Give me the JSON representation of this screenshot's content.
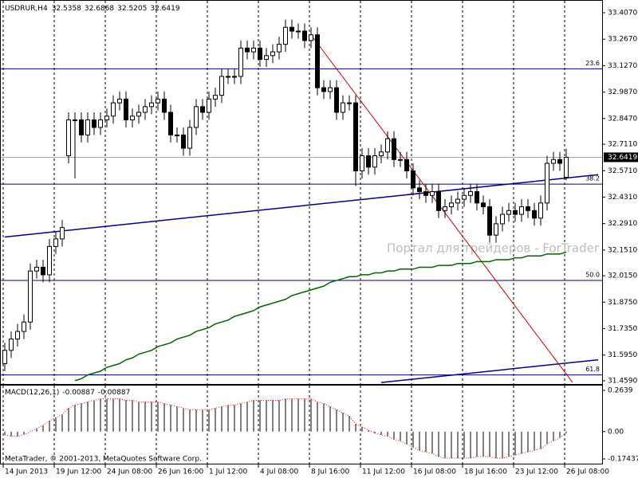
{
  "chart_data": [
    {
      "type": "candlestick",
      "symbol": "USDRUR,H4",
      "open": [
        31.55,
        31.62,
        31.68,
        31.72,
        31.77,
        32.04,
        32.06,
        32.02,
        32.17,
        32.21,
        32.65,
        32.84,
        32.84,
        32.76,
        32.84,
        32.8,
        32.84,
        32.86,
        32.93,
        32.95,
        32.84,
        32.86,
        32.88,
        32.91,
        32.93,
        32.95,
        32.88,
        32.76,
        32.76,
        32.69,
        32.8,
        32.91,
        32.88,
        32.95,
        32.97,
        33.07,
        33.07,
        33.07,
        33.22,
        33.2,
        33.22,
        33.16,
        33.18,
        33.2,
        33.24,
        33.33,
        33.31,
        33.31,
        33.26,
        33.29,
        33.01,
        32.99,
        33.01,
        32.88,
        32.93,
        32.93,
        32.57,
        32.65,
        32.59,
        32.65,
        32.67,
        32.74,
        32.63,
        32.63,
        32.57,
        32.48,
        32.46,
        32.44,
        32.46,
        32.36,
        32.38,
        32.4,
        32.42,
        32.44,
        32.46,
        32.4,
        32.38,
        32.23,
        32.29,
        32.34,
        32.36,
        32.34,
        32.38,
        32.36,
        32.32,
        32.4,
        32.61,
        32.63,
        32.5358
      ],
      "high": [
        31.66,
        31.72,
        31.76,
        31.81,
        32.08,
        32.1,
        32.1,
        32.21,
        32.25,
        32.31,
        32.88,
        32.88,
        32.88,
        32.88,
        32.88,
        32.88,
        32.9,
        32.97,
        32.99,
        32.99,
        32.9,
        32.92,
        32.95,
        32.97,
        32.99,
        32.99,
        32.92,
        32.8,
        32.8,
        32.84,
        32.95,
        32.95,
        32.99,
        33.01,
        33.11,
        33.11,
        33.11,
        33.26,
        33.26,
        33.26,
        33.26,
        33.22,
        33.24,
        33.28,
        33.37,
        33.37,
        33.35,
        33.35,
        33.33,
        33.33,
        33.05,
        33.05,
        33.05,
        32.97,
        32.97,
        32.97,
        32.69,
        32.69,
        32.69,
        32.71,
        32.78,
        32.78,
        32.67,
        32.67,
        32.61,
        32.52,
        32.5,
        32.5,
        32.5,
        32.42,
        32.44,
        32.46,
        32.48,
        32.5,
        32.5,
        32.44,
        32.42,
        32.33,
        32.38,
        32.4,
        32.4,
        32.42,
        32.42,
        32.4,
        32.44,
        32.65,
        32.67,
        32.67,
        32.6868
      ],
      "low": [
        31.51,
        31.58,
        31.64,
        31.68,
        31.73,
        32.0,
        31.98,
        31.98,
        32.13,
        32.17,
        32.61,
        32.53,
        32.72,
        32.72,
        32.76,
        32.76,
        32.8,
        32.82,
        32.89,
        32.8,
        32.8,
        32.82,
        32.84,
        32.87,
        32.89,
        32.84,
        32.72,
        32.72,
        32.65,
        32.65,
        32.76,
        32.84,
        32.84,
        32.91,
        32.93,
        33.03,
        33.03,
        33.03,
        33.16,
        33.16,
        33.12,
        33.12,
        33.14,
        33.16,
        33.2,
        33.27,
        33.27,
        33.22,
        33.22,
        32.97,
        32.95,
        32.95,
        32.84,
        32.84,
        32.89,
        32.49,
        32.53,
        32.55,
        32.55,
        32.61,
        32.63,
        32.59,
        32.59,
        32.53,
        32.44,
        32.42,
        32.4,
        32.4,
        32.32,
        32.32,
        32.34,
        32.36,
        32.38,
        32.4,
        32.36,
        32.34,
        32.19,
        32.19,
        32.25,
        32.3,
        32.3,
        32.3,
        32.32,
        32.28,
        32.28,
        32.36,
        32.57,
        32.57,
        32.5205
      ],
      "close": [
        31.62,
        31.68,
        31.72,
        31.77,
        32.04,
        32.06,
        32.02,
        32.17,
        32.21,
        32.27,
        32.84,
        32.84,
        32.76,
        32.84,
        32.8,
        32.84,
        32.86,
        32.93,
        32.95,
        32.84,
        32.86,
        32.88,
        32.91,
        32.93,
        32.95,
        32.88,
        32.76,
        32.76,
        32.69,
        32.8,
        32.91,
        32.88,
        32.95,
        32.97,
        33.07,
        33.07,
        33.07,
        33.22,
        33.2,
        33.22,
        33.16,
        33.18,
        33.2,
        33.24,
        33.33,
        33.31,
        33.31,
        33.26,
        33.29,
        33.01,
        32.99,
        33.01,
        32.88,
        32.93,
        32.93,
        32.57,
        32.65,
        32.59,
        32.65,
        32.67,
        32.74,
        32.63,
        32.63,
        32.57,
        32.48,
        32.46,
        32.44,
        32.46,
        32.36,
        32.38,
        32.4,
        32.42,
        32.44,
        32.46,
        32.4,
        32.38,
        32.23,
        32.29,
        32.34,
        32.36,
        32.34,
        32.38,
        32.36,
        32.32,
        32.4,
        32.61,
        32.63,
        32.61,
        32.6419
      ],
      "ma_values": [
        null,
        null,
        null,
        null,
        null,
        null,
        null,
        null,
        null,
        null,
        null,
        31.46,
        31.47,
        31.49,
        31.5,
        31.51,
        31.53,
        31.54,
        31.55,
        31.57,
        31.58,
        31.6,
        31.61,
        31.62,
        31.64,
        31.65,
        31.66,
        31.68,
        31.69,
        31.7,
        31.72,
        31.73,
        31.74,
        31.76,
        31.77,
        31.78,
        31.8,
        31.81,
        31.82,
        31.83,
        31.85,
        31.86,
        31.87,
        31.88,
        31.89,
        31.91,
        31.92,
        31.93,
        31.94,
        31.95,
        31.96,
        31.98,
        31.99,
        32.0,
        32.01,
        32.01,
        32.02,
        32.02,
        32.03,
        32.03,
        32.04,
        32.04,
        32.05,
        32.05,
        32.05,
        32.06,
        32.06,
        32.06,
        32.07,
        32.07,
        32.07,
        32.08,
        32.08,
        32.08,
        32.09,
        32.09,
        32.09,
        32.1,
        32.1,
        32.1,
        32.11,
        32.11,
        32.12,
        32.12,
        32.12,
        32.13,
        32.13,
        32.13,
        32.14
      ],
      "ma_color": "#006400",
      "trendlines": [
        {
          "x": [
            0,
            93
          ],
          "y": [
            32.22,
            32.55
          ],
          "color": "#000080"
        },
        {
          "x": [
            59,
            93
          ],
          "y": [
            31.45,
            31.57
          ],
          "color": "#000080"
        },
        {
          "x": [
            48,
            89
          ],
          "y": [
            33.29,
            31.45
          ],
          "color": "#cc0000"
        }
      ],
      "levels": [
        {
          "value": 33.11,
          "label": "23.6"
        },
        {
          "value": 32.5,
          "label": "38.2"
        },
        {
          "value": 31.99,
          "label": "50.0"
        },
        {
          "value": 31.49,
          "label": "61.8"
        }
      ],
      "level_color": "#000080",
      "ylim": [
        31.442,
        33.466
      ],
      "yticks": [
        {
          "value": 33.407,
          "label": "33.4070"
        },
        {
          "value": 33.267,
          "label": "33.2670"
        },
        {
          "value": 33.127,
          "label": "33.1270"
        },
        {
          "value": 32.987,
          "label": "32.9870"
        },
        {
          "value": 32.847,
          "label": "32.8470"
        },
        {
          "value": 32.711,
          "label": "32.7110"
        },
        {
          "value": 32.571,
          "label": "32.5710"
        },
        {
          "value": 32.431,
          "label": "32.4310"
        },
        {
          "value": 32.291,
          "label": "32.2910"
        },
        {
          "value": 32.151,
          "label": "32.1510"
        },
        {
          "value": 32.015,
          "label": "32.0150"
        },
        {
          "value": 31.875,
          "label": "31.8750"
        },
        {
          "value": 31.735,
          "label": "31.7350"
        },
        {
          "value": 31.595,
          "label": "31.5950"
        },
        {
          "value": 31.459,
          "label": "31.4590"
        }
      ],
      "xticks": [
        {
          "value": 0,
          "label": "14 Jun 2013"
        },
        {
          "value": 8,
          "label": "19 Jun 12:00"
        },
        {
          "value": 16,
          "label": "24 Jun 08:00"
        },
        {
          "value": 24,
          "label": "26 Jun 16:00"
        },
        {
          "value": 32,
          "label": "1 Jul 12:00"
        },
        {
          "value": 40,
          "label": "4 Jul 08:00"
        },
        {
          "value": 48,
          "label": "8 Jul 16:00"
        },
        {
          "value": 56,
          "label": "11 Jul 12:00"
        },
        {
          "value": 64,
          "label": "16 Jul 08:00"
        },
        {
          "value": 72,
          "label": "18 Jul 16:00"
        },
        {
          "value": 80,
          "label": "23 Jul 12:00"
        },
        {
          "value": 88,
          "label": "26 Jul 08:00"
        }
      ],
      "grid": true,
      "watermark": "Портал для трейдеров - ForTrader",
      "footer": "MetaTrader, © 2001-2013, MetaQuotes Software Corp."
    },
    {
      "type": "macd",
      "title": "MACD(12,26,1)",
      "values": [
        -0.02,
        -0.03,
        -0.03,
        -0.02,
        0.0,
        0.02,
        0.04,
        0.07,
        0.09,
        0.11,
        0.15,
        0.17,
        0.18,
        0.19,
        0.2,
        0.21,
        0.21,
        0.21,
        0.21,
        0.2,
        0.2,
        0.19,
        0.19,
        0.19,
        0.19,
        0.18,
        0.17,
        0.16,
        0.15,
        0.14,
        0.14,
        0.14,
        0.14,
        0.15,
        0.16,
        0.17,
        0.17,
        0.18,
        0.19,
        0.2,
        0.2,
        0.2,
        0.2,
        0.2,
        0.21,
        0.21,
        0.21,
        0.21,
        0.21,
        0.19,
        0.18,
        0.16,
        0.14,
        0.12,
        0.1,
        0.05,
        0.03,
        0.01,
        -0.01,
        -0.02,
        -0.03,
        -0.05,
        -0.06,
        -0.08,
        -0.1,
        -0.12,
        -0.13,
        -0.14,
        -0.16,
        -0.17,
        -0.17,
        -0.17,
        -0.17,
        -0.17,
        -0.16,
        -0.16,
        -0.16,
        -0.17,
        -0.17,
        -0.16,
        -0.15,
        -0.14,
        -0.13,
        -0.12,
        -0.11,
        -0.08,
        -0.06,
        -0.04,
        -0.00887
      ],
      "color": "#000000",
      "signal_color": "#ff0000",
      "ylim": [
        -0.205,
        0.2945
      ],
      "yticks": [
        0.2639,
        {
          "value": 0,
          "label": "0.00"
        },
        -0.17437
      ]
    }
  ]
}
